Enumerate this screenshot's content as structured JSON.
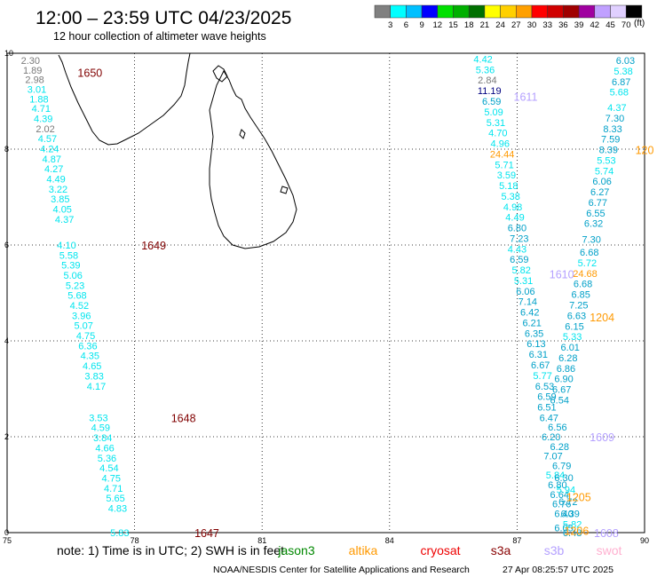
{
  "header": {
    "title": "12:00 – 23:59 UTC 04/23/2025",
    "subtitle": "12 hour collection of altimeter wave heights"
  },
  "legend": {
    "unit": "(ft)",
    "ticks": [
      "3",
      "6",
      "9",
      "12",
      "15",
      "18",
      "21",
      "24",
      "27",
      "30",
      "33",
      "36",
      "39",
      "42",
      "45",
      "70"
    ],
    "colors": [
      "#808080",
      "#00ffff",
      "#00c0ff",
      "#0000ff",
      "#00e000",
      "#00b000",
      "#007000",
      "#ffff00",
      "#ffd000",
      "#ffa000",
      "#ff0000",
      "#d00000",
      "#a00000",
      "#a000a0",
      "#c0a0ff",
      "#e0d0ff",
      "#000000"
    ]
  },
  "axes": {
    "x_ticks": [
      {
        "label": "75",
        "lon": 75
      },
      {
        "label": "78",
        "lon": 78
      },
      {
        "label": "81",
        "lon": 81
      },
      {
        "label": "84",
        "lon": 84
      },
      {
        "label": "87",
        "lon": 87
      },
      {
        "label": "90",
        "lon": 90
      }
    ],
    "y_ticks": [
      {
        "label": "0",
        "lat": 0
      },
      {
        "label": "2",
        "lat": 2
      },
      {
        "label": "4",
        "lat": 4
      },
      {
        "label": "6",
        "lat": 6
      },
      {
        "label": "8",
        "lat": 8
      },
      {
        "label": "10",
        "lat": 10
      }
    ]
  },
  "colors": {
    "cyan": "#00e5ee",
    "teal": "#00a0c8",
    "grey": "#7a7a7a",
    "navy": "#000080",
    "orange": "#ff9900",
    "maroon": "#800000",
    "lavender": "#b4a0ff",
    "green": "#008800",
    "red": "#ee0000",
    "darkred": "#880000",
    "pink": "#ffb0d0"
  },
  "tracks": [
    {
      "name": "track-1",
      "time_label": "1650",
      "label_color": "maroon",
      "label_pos": [
        76.95,
        9.6
      ],
      "points": [
        {
          "v": "2.30",
          "c": "grey",
          "lon": 75.55,
          "lat": 9.85
        },
        {
          "v": "1.89",
          "c": "grey",
          "lon": 75.6,
          "lat": 9.65
        },
        {
          "v": "2.98",
          "c": "grey",
          "lon": 75.65,
          "lat": 9.45
        },
        {
          "v": "3.01",
          "c": "cyan",
          "lon": 75.7,
          "lat": 9.25
        },
        {
          "v": "1.88",
          "c": "cyan",
          "lon": 75.75,
          "lat": 9.05
        },
        {
          "v": "4.71",
          "c": "cyan",
          "lon": 75.8,
          "lat": 8.85
        },
        {
          "v": "4.39",
          "c": "cyan",
          "lon": 75.85,
          "lat": 8.64
        },
        {
          "v": "2.02",
          "c": "grey",
          "lon": 75.9,
          "lat": 8.43
        },
        {
          "v": "4.57",
          "c": "cyan",
          "lon": 75.95,
          "lat": 8.22
        },
        {
          "v": "4.24",
          "c": "cyan",
          "lon": 76.0,
          "lat": 8.01
        },
        {
          "v": "4.87",
          "c": "cyan",
          "lon": 76.05,
          "lat": 7.8
        },
        {
          "v": "4.27",
          "c": "cyan",
          "lon": 76.1,
          "lat": 7.59
        },
        {
          "v": "4.49",
          "c": "cyan",
          "lon": 76.15,
          "lat": 7.38
        },
        {
          "v": "3.22",
          "c": "cyan",
          "lon": 76.2,
          "lat": 7.17
        },
        {
          "v": "3.85",
          "c": "cyan",
          "lon": 76.25,
          "lat": 6.96
        },
        {
          "v": "4.05",
          "c": "cyan",
          "lon": 76.3,
          "lat": 6.75
        },
        {
          "v": "4.37",
          "c": "cyan",
          "lon": 76.35,
          "lat": 6.54
        }
      ]
    },
    {
      "name": "track-2",
      "time_label": "1649",
      "label_color": "maroon",
      "label_pos": [
        78.45,
        6.0
      ],
      "points": [
        {
          "v": "4.10",
          "c": "cyan",
          "lon": 76.4,
          "lat": 6.0
        },
        {
          "v": "5.58",
          "c": "cyan",
          "lon": 76.45,
          "lat": 5.79
        },
        {
          "v": "5.39",
          "c": "cyan",
          "lon": 76.5,
          "lat": 5.58
        },
        {
          "v": "5.06",
          "c": "cyan",
          "lon": 76.55,
          "lat": 5.37
        },
        {
          "v": "5.23",
          "c": "cyan",
          "lon": 76.6,
          "lat": 5.16
        },
        {
          "v": "5.68",
          "c": "cyan",
          "lon": 76.65,
          "lat": 4.95
        },
        {
          "v": "4.52",
          "c": "cyan",
          "lon": 76.7,
          "lat": 4.74
        },
        {
          "v": "3.96",
          "c": "cyan",
          "lon": 76.75,
          "lat": 4.53
        },
        {
          "v": "5.07",
          "c": "cyan",
          "lon": 76.8,
          "lat": 4.32
        },
        {
          "v": "4.75",
          "c": "cyan",
          "lon": 76.85,
          "lat": 4.11
        },
        {
          "v": "6.36",
          "c": "cyan",
          "lon": 76.9,
          "lat": 3.9
        },
        {
          "v": "4.35",
          "c": "cyan",
          "lon": 76.95,
          "lat": 3.69
        },
        {
          "v": "4.65",
          "c": "cyan",
          "lon": 77.0,
          "lat": 3.48
        },
        {
          "v": "3.83",
          "c": "cyan",
          "lon": 77.05,
          "lat": 3.27
        },
        {
          "v": "4.17",
          "c": "cyan",
          "lon": 77.1,
          "lat": 3.06
        }
      ]
    },
    {
      "name": "track-3",
      "time_label": "1648",
      "label_color": "maroon",
      "label_pos": [
        79.15,
        2.4
      ],
      "points": [
        {
          "v": "3.53",
          "c": "cyan",
          "lon": 77.15,
          "lat": 2.4
        },
        {
          "v": "4.59",
          "c": "cyan",
          "lon": 77.2,
          "lat": 2.19
        },
        {
          "v": "3.84",
          "c": "cyan",
          "lon": 77.25,
          "lat": 1.98
        },
        {
          "v": "4.66",
          "c": "cyan",
          "lon": 77.3,
          "lat": 1.77
        },
        {
          "v": "5.36",
          "c": "cyan",
          "lon": 77.35,
          "lat": 1.56
        },
        {
          "v": "4.54",
          "c": "cyan",
          "lon": 77.4,
          "lat": 1.35
        },
        {
          "v": "4.75",
          "c": "cyan",
          "lon": 77.45,
          "lat": 1.14
        },
        {
          "v": "4.71",
          "c": "cyan",
          "lon": 77.5,
          "lat": 0.93
        },
        {
          "v": "5.65",
          "c": "cyan",
          "lon": 77.55,
          "lat": 0.72
        },
        {
          "v": "4.83",
          "c": "cyan",
          "lon": 77.6,
          "lat": 0.51
        }
      ]
    },
    {
      "name": "track-4",
      "time_label": "1647",
      "label_color": "maroon",
      "label_pos": [
        79.7,
        0.0
      ],
      "points": [
        {
          "v": "5.83",
          "c": "cyan",
          "lon": 77.65,
          "lat": 0.0
        }
      ]
    },
    {
      "name": "track-5",
      "time_label": "1611",
      "label_color": "lavender",
      "label_pos": [
        87.2,
        9.1
      ],
      "points": [
        {
          "v": "4.42",
          "c": "cyan",
          "lon": 86.2,
          "lat": 9.88
        },
        {
          "v": "5.36",
          "c": "cyan",
          "lon": 86.25,
          "lat": 9.66
        },
        {
          "v": "2.84",
          "c": "grey",
          "lon": 86.3,
          "lat": 9.44
        },
        {
          "v": "11.19",
          "c": "navy",
          "lon": 86.35,
          "lat": 9.22
        },
        {
          "v": "6.59",
          "c": "teal",
          "lon": 86.4,
          "lat": 9.0
        },
        {
          "v": "5.09",
          "c": "cyan",
          "lon": 86.45,
          "lat": 8.78
        },
        {
          "v": "5.31",
          "c": "cyan",
          "lon": 86.5,
          "lat": 8.56
        },
        {
          "v": "4.70",
          "c": "cyan",
          "lon": 86.55,
          "lat": 8.34
        },
        {
          "v": "4.96",
          "c": "cyan",
          "lon": 86.6,
          "lat": 8.12
        },
        {
          "v": "24.44",
          "c": "orange",
          "lon": 86.65,
          "lat": 7.9
        },
        {
          "v": "5.71",
          "c": "cyan",
          "lon": 86.7,
          "lat": 7.68
        },
        {
          "v": "3.59",
          "c": "cyan",
          "lon": 86.75,
          "lat": 7.46
        },
        {
          "v": "5.18",
          "c": "cyan",
          "lon": 86.8,
          "lat": 7.24
        },
        {
          "v": "5.38",
          "c": "cyan",
          "lon": 86.85,
          "lat": 7.02
        },
        {
          "v": "4.98",
          "c": "cyan",
          "lon": 86.9,
          "lat": 6.8
        },
        {
          "v": "4.49",
          "c": "cyan",
          "lon": 86.95,
          "lat": 6.58
        },
        {
          "v": "6.80",
          "c": "teal",
          "lon": 87.0,
          "lat": 6.36
        },
        {
          "v": "7.23",
          "c": "teal",
          "lon": 87.05,
          "lat": 6.14
        }
      ]
    },
    {
      "name": "track-6",
      "time_label": "1610",
      "label_color": "lavender",
      "label_pos": [
        88.05,
        5.4
      ],
      "points": [
        {
          "v": "4.43",
          "c": "cyan",
          "lon": 87.0,
          "lat": 5.92
        },
        {
          "v": "6.59",
          "c": "teal",
          "lon": 87.05,
          "lat": 5.7
        },
        {
          "v": "5.82",
          "c": "cyan",
          "lon": 87.1,
          "lat": 5.48
        },
        {
          "v": "5.31",
          "c": "cyan",
          "lon": 87.15,
          "lat": 5.26
        },
        {
          "v": "6.06",
          "c": "teal",
          "lon": 87.2,
          "lat": 5.04
        },
        {
          "v": "7.14",
          "c": "teal",
          "lon": 87.25,
          "lat": 4.82
        },
        {
          "v": "6.42",
          "c": "teal",
          "lon": 87.3,
          "lat": 4.6
        },
        {
          "v": "6.21",
          "c": "teal",
          "lon": 87.35,
          "lat": 4.38
        },
        {
          "v": "6.35",
          "c": "teal",
          "lon": 87.4,
          "lat": 4.16
        },
        {
          "v": "6.13",
          "c": "teal",
          "lon": 87.45,
          "lat": 3.94
        },
        {
          "v": "6.31",
          "c": "teal",
          "lon": 87.5,
          "lat": 3.72
        },
        {
          "v": "6.67",
          "c": "teal",
          "lon": 87.55,
          "lat": 3.5
        },
        {
          "v": "5.77",
          "c": "cyan",
          "lon": 87.6,
          "lat": 3.28
        },
        {
          "v": "6.53",
          "c": "teal",
          "lon": 87.65,
          "lat": 3.06
        },
        {
          "v": "6.59",
          "c": "teal",
          "lon": 87.7,
          "lat": 2.84
        }
      ]
    },
    {
      "name": "track-7",
      "time_label": "1609",
      "label_color": "lavender",
      "label_pos": [
        89.0,
        2.0
      ],
      "points": [
        {
          "v": "6.51",
          "c": "teal",
          "lon": 87.7,
          "lat": 2.62
        },
        {
          "v": "6.47",
          "c": "teal",
          "lon": 87.75,
          "lat": 2.4
        },
        {
          "v": "6.20",
          "c": "teal",
          "lon": 87.8,
          "lat": 2.0
        },
        {
          "v": "7.07",
          "c": "teal",
          "lon": 87.85,
          "lat": 1.6
        },
        {
          "v": "5.84",
          "c": "cyan",
          "lon": 87.9,
          "lat": 1.2
        },
        {
          "v": "6.80",
          "c": "teal",
          "lon": 87.95,
          "lat": 1.0
        },
        {
          "v": "6.64",
          "c": "teal",
          "lon": 88.0,
          "lat": 0.8
        },
        {
          "v": "6.76",
          "c": "teal",
          "lon": 88.05,
          "lat": 0.6
        },
        {
          "v": "6.40",
          "c": "teal",
          "lon": 88.1,
          "lat": 0.4
        },
        {
          "v": "6.05",
          "c": "teal",
          "lon": 88.1,
          "lat": 0.1
        }
      ]
    },
    {
      "name": "track-8",
      "time_label": "1608",
      "label_color": "lavender",
      "label_pos": [
        89.1,
        0.0
      ],
      "points": [
        {
          "v": "6.48",
          "c": "teal",
          "lon": 88.3,
          "lat": 0.0
        }
      ]
    },
    {
      "name": "track-9",
      "time_label": "1204",
      "label_color": "orange",
      "label_pos": [
        89.0,
        4.5
      ],
      "points": [
        {
          "v": "6.03",
          "c": "teal",
          "lon": 89.55,
          "lat": 9.85
        },
        {
          "v": "5.38",
          "c": "cyan",
          "lon": 89.5,
          "lat": 9.63
        },
        {
          "v": "6.87",
          "c": "teal",
          "lon": 89.45,
          "lat": 9.41
        },
        {
          "v": "5.68",
          "c": "cyan",
          "lon": 89.4,
          "lat": 9.19
        },
        {
          "v": "4.37",
          "c": "cyan",
          "lon": 89.35,
          "lat": 8.87
        },
        {
          "v": "7.30",
          "c": "teal",
          "lon": 89.3,
          "lat": 8.65
        },
        {
          "v": "8.33",
          "c": "teal",
          "lon": 89.25,
          "lat": 8.43
        },
        {
          "v": "7.59",
          "c": "teal",
          "lon": 89.2,
          "lat": 8.21
        },
        {
          "v": "8.39",
          "c": "teal",
          "lon": 89.15,
          "lat": 7.99
        },
        {
          "v": "5.53",
          "c": "cyan",
          "lon": 89.1,
          "lat": 7.77
        },
        {
          "v": "5.74",
          "c": "cyan",
          "lon": 89.05,
          "lat": 7.55
        },
        {
          "v": "6.06",
          "c": "teal",
          "lon": 89.0,
          "lat": 7.33
        },
        {
          "v": "6.27",
          "c": "teal",
          "lon": 88.95,
          "lat": 7.11
        },
        {
          "v": "6.77",
          "c": "teal",
          "lon": 88.9,
          "lat": 6.89
        },
        {
          "v": "6.55",
          "c": "teal",
          "lon": 88.85,
          "lat": 6.67
        },
        {
          "v": "6.32",
          "c": "teal",
          "lon": 88.8,
          "lat": 6.45
        },
        {
          "v": "7.30",
          "c": "teal",
          "lon": 88.75,
          "lat": 6.12
        },
        {
          "v": "6.68",
          "c": "teal",
          "lon": 88.7,
          "lat": 5.85
        },
        {
          "v": "5.72",
          "c": "cyan",
          "lon": 88.65,
          "lat": 5.63
        },
        {
          "v": "24.68",
          "c": "orange",
          "lon": 88.6,
          "lat": 5.41
        },
        {
          "v": "6.68",
          "c": "teal",
          "lon": 88.55,
          "lat": 5.19
        },
        {
          "v": "6.85",
          "c": "teal",
          "lon": 88.5,
          "lat": 4.97
        },
        {
          "v": "7.25",
          "c": "teal",
          "lon": 88.45,
          "lat": 4.75
        },
        {
          "v": "6.63",
          "c": "teal",
          "lon": 88.4,
          "lat": 4.53
        },
        {
          "v": "6.15",
          "c": "teal",
          "lon": 88.35,
          "lat": 4.31
        },
        {
          "v": "5.33",
          "c": "cyan",
          "lon": 88.3,
          "lat": 4.09
        },
        {
          "v": "6.01",
          "c": "teal",
          "lon": 88.25,
          "lat": 3.87
        },
        {
          "v": "6.28",
          "c": "teal",
          "lon": 88.2,
          "lat": 3.65
        },
        {
          "v": "6.86",
          "c": "teal",
          "lon": 88.15,
          "lat": 3.43
        },
        {
          "v": "6.90",
          "c": "teal",
          "lon": 88.1,
          "lat": 3.21
        },
        {
          "v": "6.67",
          "c": "teal",
          "lon": 88.05,
          "lat": 2.99
        },
        {
          "v": "6.54",
          "c": "teal",
          "lon": 88.0,
          "lat": 2.77
        }
      ]
    },
    {
      "name": "track-10",
      "time_label": "1205",
      "label_color": "orange",
      "label_pos": [
        88.45,
        0.75
      ],
      "points": [
        {
          "v": "6.56",
          "c": "teal",
          "lon": 87.95,
          "lat": 2.2
        },
        {
          "v": "6.28",
          "c": "teal",
          "lon": 88.0,
          "lat": 1.8
        },
        {
          "v": "6.79",
          "c": "teal",
          "lon": 88.05,
          "lat": 1.4
        },
        {
          "v": "6.30",
          "c": "teal",
          "lon": 88.1,
          "lat": 1.15
        },
        {
          "v": "5.94",
          "c": "cyan",
          "lon": 88.15,
          "lat": 0.9
        },
        {
          "v": "6.72",
          "c": "teal",
          "lon": 88.2,
          "lat": 0.65
        },
        {
          "v": "6.39",
          "c": "teal",
          "lon": 88.25,
          "lat": 0.4
        },
        {
          "v": "5.82",
          "c": "cyan",
          "lon": 88.3,
          "lat": 0.18
        }
      ]
    },
    {
      "name": "track-11",
      "time_label": "1206",
      "label_color": "orange",
      "label_pos": [
        88.4,
        0.05
      ],
      "points": []
    },
    {
      "name": "track-12",
      "time_label": "120",
      "label_color": "orange",
      "label_pos": [
        90.0,
        7.99
      ],
      "points": []
    }
  ],
  "note": {
    "text": "note:  1) Time is in UTC; 2) SWH is in feet",
    "satellites": [
      {
        "name": "jason3",
        "color": "green"
      },
      {
        "name": "altika",
        "color": "orange"
      },
      {
        "name": "cryosat",
        "color": "red"
      },
      {
        "name": "s3a",
        "color": "darkred"
      },
      {
        "name": "s3b",
        "color": "lavender"
      },
      {
        "name": "swot",
        "color": "pink"
      }
    ]
  },
  "footer": {
    "credit": "NOAA/NESDIS Center for Satellite Applications and Research",
    "timestamp": "27 Apr 08:25:57 UTC 2025"
  }
}
